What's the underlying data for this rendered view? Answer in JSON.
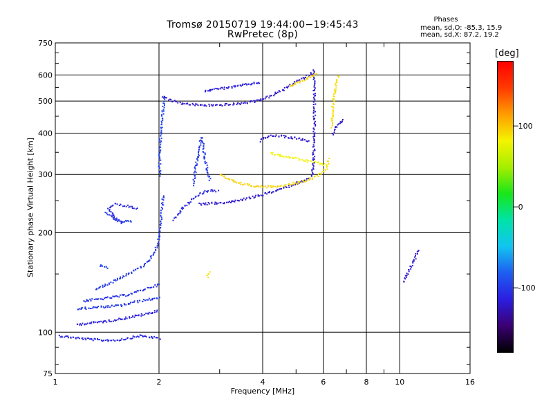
{
  "header": {
    "title_line1": "Tromsø 20150719 19:44:00−19:45:43",
    "title_line2": "RwPretec (8p)"
  },
  "stats": {
    "title": "Phases",
    "o_line": "mean, sd,O: -85.3, 15.9",
    "x_line": "mean, sd,X:  87.2, 19.2"
  },
  "colorbar": {
    "label": "[deg]",
    "ticks": [
      "100",
      "0",
      "-100"
    ],
    "tick_values": [
      100,
      0,
      -100
    ],
    "range": [
      -180,
      180
    ],
    "colors": [
      "#000000",
      "#3b0073",
      "#2b1ee0",
      "#1e5ef0",
      "#12c4f0",
      "#00e3a8",
      "#19e619",
      "#a6ee00",
      "#f4f400",
      "#ff9d00",
      "#ff3a00",
      "#ff0000"
    ]
  },
  "chart_data": {
    "type": "scatter",
    "title": "Tromsø 20150719 19:44:00−19:45:43",
    "subtitle": "RwPretec (8p)",
    "xlabel": "Frequency [MHz]",
    "ylabel": "Stationary phase Virtual Height [km]",
    "xscale": "log",
    "yscale": "log",
    "xlim": [
      1,
      16
    ],
    "ylim": [
      75,
      750
    ],
    "x_ticks": [
      1,
      2,
      4,
      6,
      8,
      10,
      16
    ],
    "x_tick_labels": [
      "1",
      "2",
      "4",
      "6",
      "8",
      "10",
      "16"
    ],
    "y_ticks": [
      75,
      100,
      200,
      300,
      400,
      500,
      600,
      750
    ],
    "y_tick_labels": [
      "75",
      "100",
      "200",
      "300",
      "400",
      "500",
      "600",
      "750"
    ],
    "grid": true,
    "traces": [
      {
        "x": [
          1.02,
          1.1,
          1.2,
          1.35,
          1.5,
          1.6,
          1.75,
          1.9,
          2.0
        ],
        "y": [
          98,
          97,
          96,
          95,
          95,
          96,
          98,
          97,
          96
        ],
        "phase": -110
      },
      {
        "x": [
          1.15,
          1.25,
          1.35,
          1.45,
          1.6,
          1.75,
          1.9,
          1.97
        ],
        "y": [
          106,
          107,
          108,
          109,
          111,
          113,
          115,
          117
        ],
        "phase": -115
      },
      {
        "x": [
          1.15,
          1.25,
          1.4,
          1.55,
          1.7,
          1.85,
          2.0
        ],
        "y": [
          118,
          119,
          120,
          121,
          124,
          126,
          128
        ],
        "phase": -100
      },
      {
        "x": [
          1.2,
          1.3,
          1.45,
          1.6,
          1.75,
          1.9,
          2.0
        ],
        "y": [
          125,
          126,
          128,
          130,
          134,
          138,
          140
        ],
        "phase": -105
      },
      {
        "x": [
          1.3,
          1.4,
          1.5,
          1.6,
          1.7,
          1.8,
          1.9,
          1.95,
          2.0,
          2.02,
          2.05
        ],
        "y": [
          135,
          140,
          145,
          150,
          155,
          160,
          170,
          180,
          195,
          220,
          260
        ],
        "phase": -100
      },
      {
        "x": [
          1.34,
          1.37,
          1.42
        ],
        "y": [
          160,
          158,
          157
        ],
        "phase": -95
      },
      {
        "x": [
          1.55,
          1.5,
          1.45,
          1.42,
          1.48,
          1.6,
          1.72
        ],
        "y": [
          215,
          220,
          230,
          238,
          245,
          242,
          238
        ],
        "phase": -110
      },
      {
        "x": [
          1.4,
          1.45,
          1.5,
          1.55,
          1.6,
          1.65
        ],
        "y": [
          230,
          225,
          220,
          218,
          217,
          217
        ],
        "phase": -100
      },
      {
        "x": [
          2.0,
          2.0,
          2.01,
          2.02,
          2.03,
          2.05,
          2.07
        ],
        "y": [
          300,
          340,
          380,
          410,
          440,
          480,
          520
        ],
        "phase": -95
      },
      {
        "x": [
          2.05,
          2.15,
          2.3,
          2.5,
          2.7,
          2.9,
          3.1,
          3.3,
          3.5,
          3.8,
          4.2,
          4.6,
          5.0,
          5.4,
          5.6
        ],
        "y": [
          520,
          505,
          495,
          490,
          488,
          488,
          490,
          492,
          495,
          502,
          520,
          545,
          575,
          600,
          615
        ],
        "phase": -120
      },
      {
        "x": [
          2.7,
          3.0,
          3.3,
          3.6,
          3.9
        ],
        "y": [
          540,
          548,
          555,
          565,
          572
        ],
        "phase": -115
      },
      {
        "x": [
          2.5,
          2.55,
          2.6,
          2.65,
          2.7,
          2.75,
          2.8
        ],
        "y": [
          280,
          320,
          360,
          390,
          340,
          310,
          290
        ],
        "phase": -100
      },
      {
        "x": [
          2.2,
          2.35,
          2.5,
          2.65,
          2.8,
          2.95
        ],
        "y": [
          220,
          240,
          255,
          265,
          270,
          268
        ],
        "phase": -110
      },
      {
        "x": [
          2.6,
          2.8,
          3.0,
          3.3,
          3.6,
          4.0,
          4.4,
          4.8,
          5.2,
          5.5
        ],
        "y": [
          245,
          246,
          247,
          250,
          255,
          262,
          270,
          279,
          288,
          296
        ],
        "phase": -120
      },
      {
        "x": [
          5.55,
          5.6,
          5.62,
          5.63,
          5.63,
          5.62,
          5.6
        ],
        "y": [
          300,
          340,
          400,
          460,
          520,
          580,
          620
        ],
        "phase": -120
      },
      {
        "x": [
          3.0,
          3.2,
          3.4,
          3.6,
          3.8,
          4.0,
          4.2,
          4.4,
          4.6
        ],
        "y": [
          300,
          290,
          284,
          280,
          278,
          277,
          277,
          278,
          280
        ],
        "phase": 95
      },
      {
        "x": [
          4.6,
          5.0,
          5.4,
          5.8,
          6.1,
          6.2
        ],
        "y": [
          280,
          284,
          290,
          300,
          315,
          335
        ],
        "phase": 90
      },
      {
        "x": [
          4.2,
          4.6,
          5.0,
          5.4,
          5.8,
          6.1
        ],
        "y": [
          350,
          342,
          336,
          330,
          326,
          322
        ],
        "phase": 80
      },
      {
        "x": [
          3.9,
          4.0,
          4.3,
          4.6,
          5.0,
          5.4
        ],
        "y": [
          380,
          390,
          395,
          392,
          388,
          380
        ],
        "phase": -120
      },
      {
        "x": [
          4.8,
          5.1,
          5.4,
          5.7
        ],
        "y": [
          560,
          575,
          590,
          610
        ],
        "phase": 95
      },
      {
        "x": [
          6.3,
          6.35,
          6.4,
          6.5,
          6.6
        ],
        "y": [
          420,
          470,
          520,
          560,
          600
        ],
        "phase": 90
      },
      {
        "x": [
          6.35,
          6.5,
          6.65,
          6.8
        ],
        "y": [
          400,
          420,
          430,
          440
        ],
        "phase": -120
      },
      {
        "x": [
          2.75,
          2.8
        ],
        "y": [
          148,
          152
        ],
        "phase": 90
      },
      {
        "x": [
          10.2,
          11.3
        ],
        "y": [
          143,
          178
        ],
        "phase": -120
      }
    ]
  }
}
